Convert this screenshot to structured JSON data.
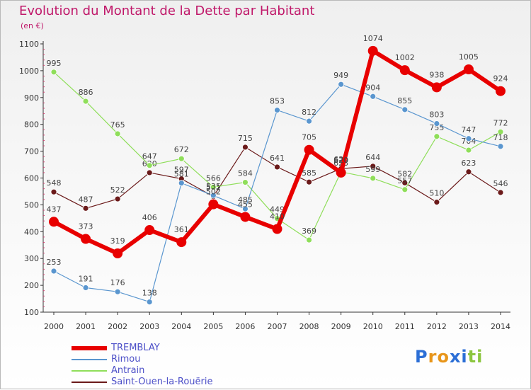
{
  "title": "Evolution du Montant de la Dette par Habitant",
  "unit": "(en €)",
  "logo": {
    "letters": [
      "P",
      "r",
      "o",
      "x",
      "i",
      "t",
      "i"
    ],
    "colors": [
      "#2c6fd6",
      "#e8961b",
      "#e8961b",
      "#2c6fd6",
      "#2c6fd6",
      "#8cc63f",
      "#8cc63f"
    ]
  },
  "chart_data": {
    "type": "line",
    "categories": [
      "2000",
      "2001",
      "2002",
      "2003",
      "2004",
      "2005",
      "2006",
      "2007",
      "2008",
      "2009",
      "2010",
      "2011",
      "2012",
      "2013",
      "2014"
    ],
    "ylim": [
      100,
      1100
    ],
    "yticks": [
      "100",
      "200",
      "300",
      "400",
      "500",
      "600",
      "700",
      "800",
      "900",
      "1000",
      "1100"
    ],
    "grid": false,
    "legend_position": "bottom-left",
    "series": [
      {
        "name": "Saint-Ouen-la-Rouërie",
        "color": "#6b1a1a",
        "width": 1.2,
        "marker": 4,
        "values": [
          548,
          487,
          522,
          620,
          597,
          531,
          715,
          641,
          585,
          635,
          644,
          582,
          510,
          623,
          546
        ],
        "labels": [
          "548",
          "487",
          "522",
          "620",
          "597",
          "531",
          "715",
          "641",
          "585",
          "635",
          "644",
          "582",
          "510",
          "623",
          "546"
        ]
      },
      {
        "name": "Antrain",
        "color": "#8fde5a",
        "width": 1.2,
        "marker": 4,
        "values": [
          995,
          886,
          765,
          647,
          672,
          566,
          584,
          449,
          369,
          623,
          599,
          557,
          755,
          704,
          772
        ],
        "labels": [
          "995",
          "886",
          "765",
          "647",
          "672",
          "566",
          "584",
          "449",
          "369",
          "623",
          "599",
          "557",
          "755",
          "704",
          "772"
        ]
      },
      {
        "name": "Rimou",
        "color": "#5a96cf",
        "width": 1.2,
        "marker": 4,
        "values": [
          253,
          191,
          176,
          138,
          581,
          535,
          485,
          853,
          812,
          949,
          904,
          855,
          803,
          747,
          718
        ],
        "labels": [
          "253",
          "191",
          "176",
          "138",
          "581",
          "535",
          "485",
          "853",
          "812",
          "949",
          "904",
          "855",
          "803",
          "747",
          "718"
        ]
      },
      {
        "name": "TREMBLAY",
        "color": "#e80000",
        "width": 6,
        "marker": 7,
        "values": [
          437,
          373,
          319,
          406,
          361,
          502,
          455,
          410,
          705,
          620,
          1074,
          1002,
          938,
          1005,
          924
        ],
        "labels": [
          "437",
          "373",
          "319",
          "406",
          "361",
          "502",
          "455",
          "410",
          "705",
          "620",
          "1074",
          "1002",
          "938",
          "1005",
          "924"
        ]
      }
    ],
    "legend": [
      "TREMBLAY",
      "Rimou",
      "Antrain",
      "Saint-Ouen-la-Rouërie"
    ]
  }
}
